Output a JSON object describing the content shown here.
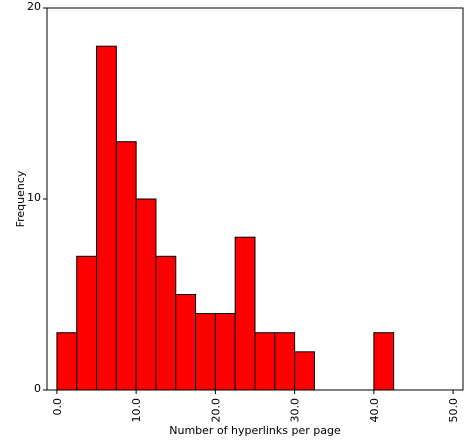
{
  "chart_data": {
    "type": "bar",
    "title": "",
    "xlabel": "Number of hyperlinks per page",
    "ylabel": "Frequency",
    "bin_width": 2.5,
    "bins": [
      {
        "start": 0.0,
        "end": 2.5,
        "value": 3
      },
      {
        "start": 2.5,
        "end": 5.0,
        "value": 7
      },
      {
        "start": 5.0,
        "end": 7.5,
        "value": 18
      },
      {
        "start": 7.5,
        "end": 10.0,
        "value": 13
      },
      {
        "start": 10.0,
        "end": 12.5,
        "value": 10
      },
      {
        "start": 12.5,
        "end": 15.0,
        "value": 7
      },
      {
        "start": 15.0,
        "end": 17.5,
        "value": 5
      },
      {
        "start": 17.5,
        "end": 20.0,
        "value": 4
      },
      {
        "start": 20.0,
        "end": 22.5,
        "value": 4
      },
      {
        "start": 22.5,
        "end": 25.0,
        "value": 8
      },
      {
        "start": 25.0,
        "end": 27.5,
        "value": 3
      },
      {
        "start": 27.5,
        "end": 30.0,
        "value": 3
      },
      {
        "start": 30.0,
        "end": 32.5,
        "value": 2
      },
      {
        "start": 40.0,
        "end": 42.5,
        "value": 3
      }
    ],
    "xlim": [
      -1.25,
      51.25
    ],
    "ylim": [
      0,
      20
    ],
    "x_ticks": [
      "0.0",
      "10.0",
      "20.0",
      "30.0",
      "40.0",
      "50.0"
    ],
    "y_ticks": [
      "0",
      "10",
      "20"
    ],
    "bar_color": "#ff0000",
    "grid": false,
    "legend": "none"
  }
}
